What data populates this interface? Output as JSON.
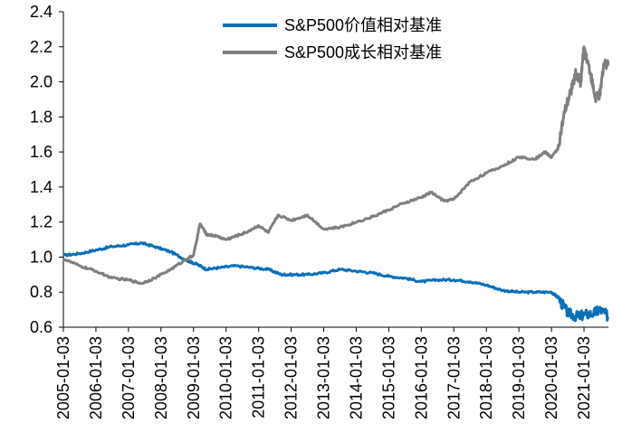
{
  "chart_data": {
    "type": "line",
    "title": "",
    "xlabel": "",
    "ylabel": "",
    "ylim": [
      0.6,
      2.4
    ],
    "yticks": [
      "0.6",
      "0.8",
      "1.0",
      "1.2",
      "1.4",
      "1.6",
      "1.8",
      "2.0",
      "2.2",
      "2.4"
    ],
    "xticks": [
      "2005-01-03",
      "2006-01-03",
      "2007-01-03",
      "2008-01-03",
      "2009-01-03",
      "2010-01-03",
      "2011-01-03",
      "2012-01-03",
      "2013-01-03",
      "2014-01-03",
      "2015-01-03",
      "2016-01-03",
      "2017-01-03",
      "2018-01-03",
      "2019-01-03",
      "2020-01-03",
      "2021-01-03"
    ],
    "xlim": [
      2005.0,
      2021.75
    ],
    "grid": false,
    "legend_position": "top-center",
    "series": [
      {
        "name": "S&P500价值相对基准",
        "color": "#0a6fba",
        "x": [
          2005.0,
          2005.5,
          2006.0,
          2006.5,
          2007.0,
          2007.4,
          2007.8,
          2008.3,
          2008.8,
          2009.1,
          2009.4,
          2009.8,
          2010.3,
          2010.8,
          2011.3,
          2011.7,
          2012.0,
          2012.5,
          2013.0,
          2013.5,
          2014.0,
          2014.5,
          2015.0,
          2015.5,
          2016.0,
          2016.5,
          2017.0,
          2017.5,
          2018.0,
          2018.5,
          2019.0,
          2019.5,
          2020.0,
          2020.2,
          2020.5,
          2020.8,
          2021.0,
          2021.3,
          2021.5,
          2021.75
        ],
        "values": [
          1.01,
          1.02,
          1.04,
          1.06,
          1.07,
          1.08,
          1.06,
          1.03,
          0.98,
          0.96,
          0.93,
          0.94,
          0.95,
          0.94,
          0.93,
          0.9,
          0.9,
          0.9,
          0.91,
          0.93,
          0.92,
          0.91,
          0.89,
          0.88,
          0.86,
          0.87,
          0.87,
          0.86,
          0.84,
          0.81,
          0.8,
          0.8,
          0.8,
          0.77,
          0.68,
          0.66,
          0.67,
          0.68,
          0.7,
          0.66
        ]
      },
      {
        "name": "S&P500成长相对基准",
        "color": "#7f7f7f",
        "x": [
          2005.0,
          2005.5,
          2006.0,
          2006.5,
          2007.0,
          2007.4,
          2007.8,
          2008.3,
          2008.8,
          2009.0,
          2009.2,
          2009.4,
          2009.7,
          2010.0,
          2010.3,
          2010.6,
          2011.0,
          2011.3,
          2011.6,
          2012.0,
          2012.5,
          2013.0,
          2013.5,
          2014.0,
          2014.5,
          2015.0,
          2015.5,
          2016.0,
          2016.3,
          2016.7,
          2017.0,
          2017.5,
          2018.0,
          2018.5,
          2019.0,
          2019.5,
          2019.8,
          2020.0,
          2020.2,
          2020.4,
          2020.6,
          2020.75,
          2020.9,
          2021.0,
          2021.2,
          2021.35,
          2021.5,
          2021.6,
          2021.75
        ],
        "values": [
          0.99,
          0.95,
          0.92,
          0.88,
          0.87,
          0.85,
          0.88,
          0.93,
          0.99,
          1.01,
          1.19,
          1.13,
          1.12,
          1.1,
          1.12,
          1.14,
          1.18,
          1.14,
          1.24,
          1.21,
          1.24,
          1.16,
          1.17,
          1.2,
          1.23,
          1.27,
          1.31,
          1.34,
          1.37,
          1.32,
          1.33,
          1.43,
          1.48,
          1.52,
          1.57,
          1.56,
          1.6,
          1.57,
          1.62,
          1.82,
          1.95,
          2.05,
          2.0,
          2.2,
          2.05,
          1.9,
          1.93,
          2.1,
          2.11
        ]
      }
    ]
  }
}
